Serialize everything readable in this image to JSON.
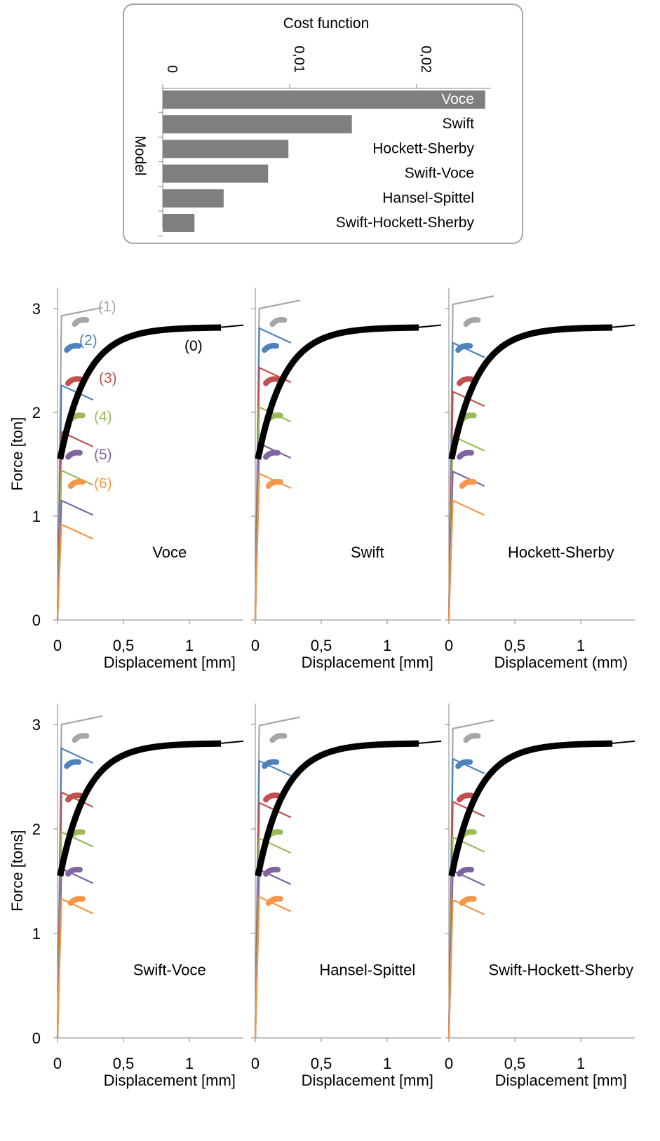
{
  "chart_data": [
    {
      "type": "bar",
      "orientation": "horizontal",
      "title": "Cost function",
      "ylabel": "Model",
      "xlim": [
        0,
        0.026
      ],
      "xticks": [
        "0",
        "0,01",
        "0,02"
      ],
      "tick_values": [
        0,
        0.01,
        0.02
      ],
      "categories": [
        "Voce",
        "Swift",
        "Hockett-Sherby",
        "Swift-Voce",
        "Hansel-Spittel",
        "Swift-Hockett-Sherby"
      ],
      "values": [
        0.0254,
        0.0149,
        0.0099,
        0.0083,
        0.0048,
        0.0025
      ],
      "bar_color": "#7f7f7f"
    },
    {
      "type": "line",
      "panels": [
        {
          "name": "Voce",
          "ylabel": "Force  [ton]",
          "xlabel": "Displacement [mm]",
          "curve_labels": [
            "(0)",
            "(1)",
            "(2)",
            "(3)",
            "(4)",
            "(5)",
            "(6)"
          ],
          "yield": [
            2.93,
            2.26,
            1.81,
            1.44,
            1.15,
            0.92
          ]
        },
        {
          "name": "Swift",
          "ylabel": "",
          "xlabel": "Displacement [mm]",
          "yield": [
            3.0,
            2.81,
            2.43,
            2.05,
            1.7,
            1.41
          ]
        },
        {
          "name": "Hockett-Sherby",
          "ylabel": "",
          "xlabel": "Displacement (mm)",
          "yield": [
            3.04,
            2.67,
            2.2,
            1.77,
            1.43,
            1.15
          ]
        },
        {
          "name": "Swift-Voce",
          "ylabel": "Force  [tons]",
          "xlabel": "Displacement [mm]",
          "yield": [
            3.0,
            2.77,
            2.35,
            1.97,
            1.62,
            1.33
          ]
        },
        {
          "name": "Hansel-Spittel",
          "ylabel": "",
          "xlabel": "Displacement [mm]",
          "yield": [
            2.99,
            2.65,
            2.25,
            1.91,
            1.61,
            1.35
          ]
        },
        {
          "name": "Swift-Hockett-Sherby",
          "ylabel": "",
          "xlabel": "Displacement [mm]",
          "yield": [
            2.96,
            2.67,
            2.26,
            1.92,
            1.6,
            1.32
          ]
        }
      ],
      "xlim": [
        0,
        1.4
      ],
      "ylim": [
        0,
        3.2
      ],
      "xticks": [
        "0",
        "0,5",
        "1"
      ],
      "xtick_values": [
        0,
        0.5,
        1
      ],
      "yticks": [
        "0",
        "1",
        "2",
        "3"
      ],
      "ytick_values": [
        0,
        1,
        2,
        3
      ],
      "series_colors": [
        "#000000",
        "#a6a6a6",
        "#4f81bd",
        "#c0504d",
        "#9bbb59",
        "#8064a2",
        "#f79646"
      ],
      "experimental_points": [
        {
          "x": 0.18,
          "y": 2.88
        },
        {
          "x": 0.12,
          "y": 2.63
        },
        {
          "x": 0.13,
          "y": 2.31
        },
        {
          "x": 0.15,
          "y": 1.96
        },
        {
          "x": 0.13,
          "y": 1.6
        },
        {
          "x": 0.15,
          "y": 1.32
        }
      ]
    }
  ]
}
